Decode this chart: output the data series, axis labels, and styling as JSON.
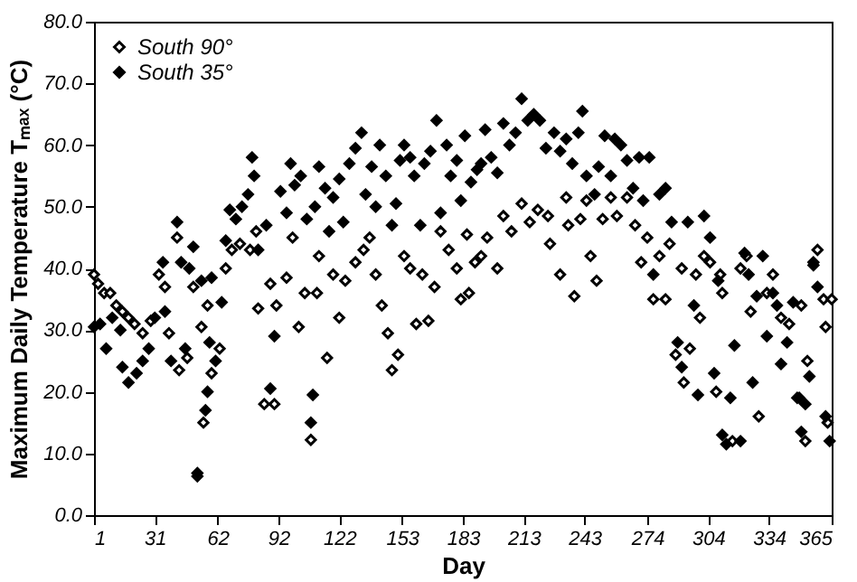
{
  "chart_data": {
    "type": "scatter",
    "xlabel": "Day",
    "ylabel": "Maximum Daily Temperature Tₘₐₓ (°C)",
    "xlim": [
      1,
      365
    ],
    "xticks": [
      1,
      31,
      62,
      92,
      122,
      153,
      183,
      213,
      243,
      274,
      304,
      334,
      365
    ],
    "ylim": [
      0,
      80
    ],
    "yticks": [
      {
        "value": 0,
        "label": "0.0"
      },
      {
        "value": 10,
        "label": "10.0"
      },
      {
        "value": 20,
        "label": "20.0"
      },
      {
        "value": 30,
        "label": "30.0"
      },
      {
        "value": 40,
        "label": "40.0"
      },
      {
        "value": 50,
        "label": "50.0"
      },
      {
        "value": 60,
        "label": "60.0"
      },
      {
        "value": 70,
        "label": "70.0"
      },
      {
        "value": 80,
        "label": "80.0"
      }
    ],
    "marker": "diamond",
    "legend": "top left",
    "grid": false,
    "series": [
      {
        "name": "South 90°",
        "color": "#000000",
        "x": [
          1,
          3,
          6,
          9,
          12,
          15,
          18,
          21,
          25,
          29,
          33,
          36,
          38,
          42,
          43,
          47,
          50,
          52,
          54,
          55,
          57,
          59,
          63,
          66,
          69,
          73,
          78,
          81,
          82,
          85,
          88,
          90,
          91,
          96,
          99,
          102,
          105,
          108,
          111,
          112,
          116,
          119,
          122,
          125,
          130,
          134,
          137,
          140,
          143,
          146,
          148,
          151,
          154,
          157,
          160,
          163,
          166,
          169,
          172,
          176,
          180,
          182,
          185,
          186,
          189,
          192,
          195,
          200,
          203,
          207,
          212,
          216,
          220,
          225,
          226,
          231,
          234,
          235,
          238,
          241,
          244,
          246,
          249,
          252,
          256,
          259,
          264,
          268,
          271,
          274,
          277,
          280,
          283,
          285,
          288,
          291,
          292,
          295,
          298,
          300,
          302,
          305,
          308,
          310,
          311,
          316,
          320,
          323,
          325,
          329,
          333,
          336,
          340,
          344,
          349,
          350,
          352,
          353,
          356,
          358,
          361,
          362,
          363,
          365
        ],
        "values": [
          39,
          37.5,
          36,
          36,
          34,
          33,
          32,
          31,
          29.5,
          31.5,
          39,
          37,
          29.5,
          45,
          23.5,
          25.5,
          37,
          6.3,
          30.5,
          15,
          34,
          23,
          27,
          40,
          43,
          44,
          43,
          46,
          33.5,
          18,
          37.5,
          18,
          34,
          38.5,
          45,
          30.5,
          36,
          12.2,
          36,
          42,
          25.5,
          39,
          32,
          38,
          41,
          43,
          45,
          39,
          34,
          29.5,
          23.5,
          26,
          42,
          40,
          31,
          39,
          31.5,
          37,
          46,
          43,
          40,
          35,
          45.5,
          36,
          41,
          42,
          45,
          40,
          48.5,
          46,
          50.5,
          47.5,
          49.5,
          48.5,
          44,
          39,
          51.5,
          47,
          35.5,
          48,
          51,
          42,
          38,
          48,
          51.5,
          48.5,
          51.5,
          47,
          41,
          45,
          35,
          42,
          35,
          44,
          26,
          40,
          21.5,
          27,
          39,
          32,
          42,
          41,
          20,
          39,
          36,
          12,
          40,
          42,
          33,
          16,
          36,
          39,
          32,
          31,
          19,
          34,
          12,
          25,
          41,
          43,
          35,
          30.5,
          15,
          35
        ]
      },
      {
        "name": "South 35°",
        "color": "#000000",
        "x": [
          1,
          4,
          7,
          10,
          14,
          15,
          18,
          22,
          25,
          28,
          31,
          35,
          36,
          39,
          42,
          44,
          46,
          48,
          50,
          52,
          54,
          56,
          57,
          58,
          59,
          61,
          64,
          66,
          68,
          71,
          74,
          77,
          79,
          80,
          82,
          86,
          88,
          90,
          93,
          96,
          98,
          100,
          103,
          106,
          108,
          109,
          110,
          112,
          115,
          117,
          119,
          122,
          124,
          127,
          130,
          133,
          135,
          138,
          140,
          142,
          145,
          148,
          150,
          152,
          154,
          157,
          159,
          162,
          164,
          167,
          170,
          172,
          175,
          177,
          180,
          182,
          184,
          187,
          190,
          192,
          194,
          197,
          200,
          203,
          206,
          209,
          212,
          215,
          218,
          221,
          224,
          228,
          231,
          234,
          237,
          240,
          242,
          244,
          248,
          250,
          253,
          256,
          258,
          261,
          264,
          267,
          270,
          272,
          275,
          277,
          280,
          283,
          286,
          289,
          291,
          294,
          297,
          299,
          302,
          305,
          307,
          309,
          311,
          313,
          315,
          317,
          320,
          322,
          324,
          326,
          328,
          331,
          333,
          336,
          338,
          340,
          343,
          346,
          348,
          350,
          352,
          354,
          356,
          358,
          362,
          364
        ],
        "values": [
          30.5,
          31,
          27,
          32,
          30,
          24,
          21.5,
          23,
          25,
          27,
          32,
          41,
          33,
          25,
          47.5,
          41,
          27,
          40,
          43.5,
          6.8,
          38,
          17,
          20,
          28,
          38.5,
          25,
          34.5,
          44.5,
          49.5,
          48,
          50,
          52,
          58,
          55,
          43,
          47,
          20.5,
          29,
          52.5,
          49,
          57,
          53.5,
          55,
          48,
          15,
          19.5,
          50,
          56.5,
          53,
          46,
          51.5,
          54.5,
          47.5,
          57,
          59.5,
          62,
          52,
          56.5,
          50,
          60,
          55,
          47,
          50.5,
          57.5,
          60,
          58,
          55,
          47,
          57,
          59,
          64,
          49,
          60,
          55,
          57.5,
          51,
          61.5,
          54,
          56,
          57,
          62.5,
          58,
          55.5,
          63.5,
          60,
          62,
          67.5,
          64,
          65,
          64,
          59.5,
          62,
          59,
          61,
          57,
          62,
          65.5,
          55,
          52,
          56.5,
          61.5,
          55,
          61,
          60,
          57.5,
          53,
          58,
          51,
          58,
          39,
          52,
          53,
          47.5,
          28,
          24,
          47.5,
          34,
          19.5,
          48.5,
          45,
          23,
          38,
          13,
          11.5,
          19,
          27.5,
          12,
          42.5,
          39,
          21.5,
          35.5,
          42,
          29,
          36,
          34,
          24.5,
          28,
          34.5,
          19,
          13.5,
          18,
          22.5,
          40.5,
          37,
          16,
          12
        ]
      }
    ]
  }
}
